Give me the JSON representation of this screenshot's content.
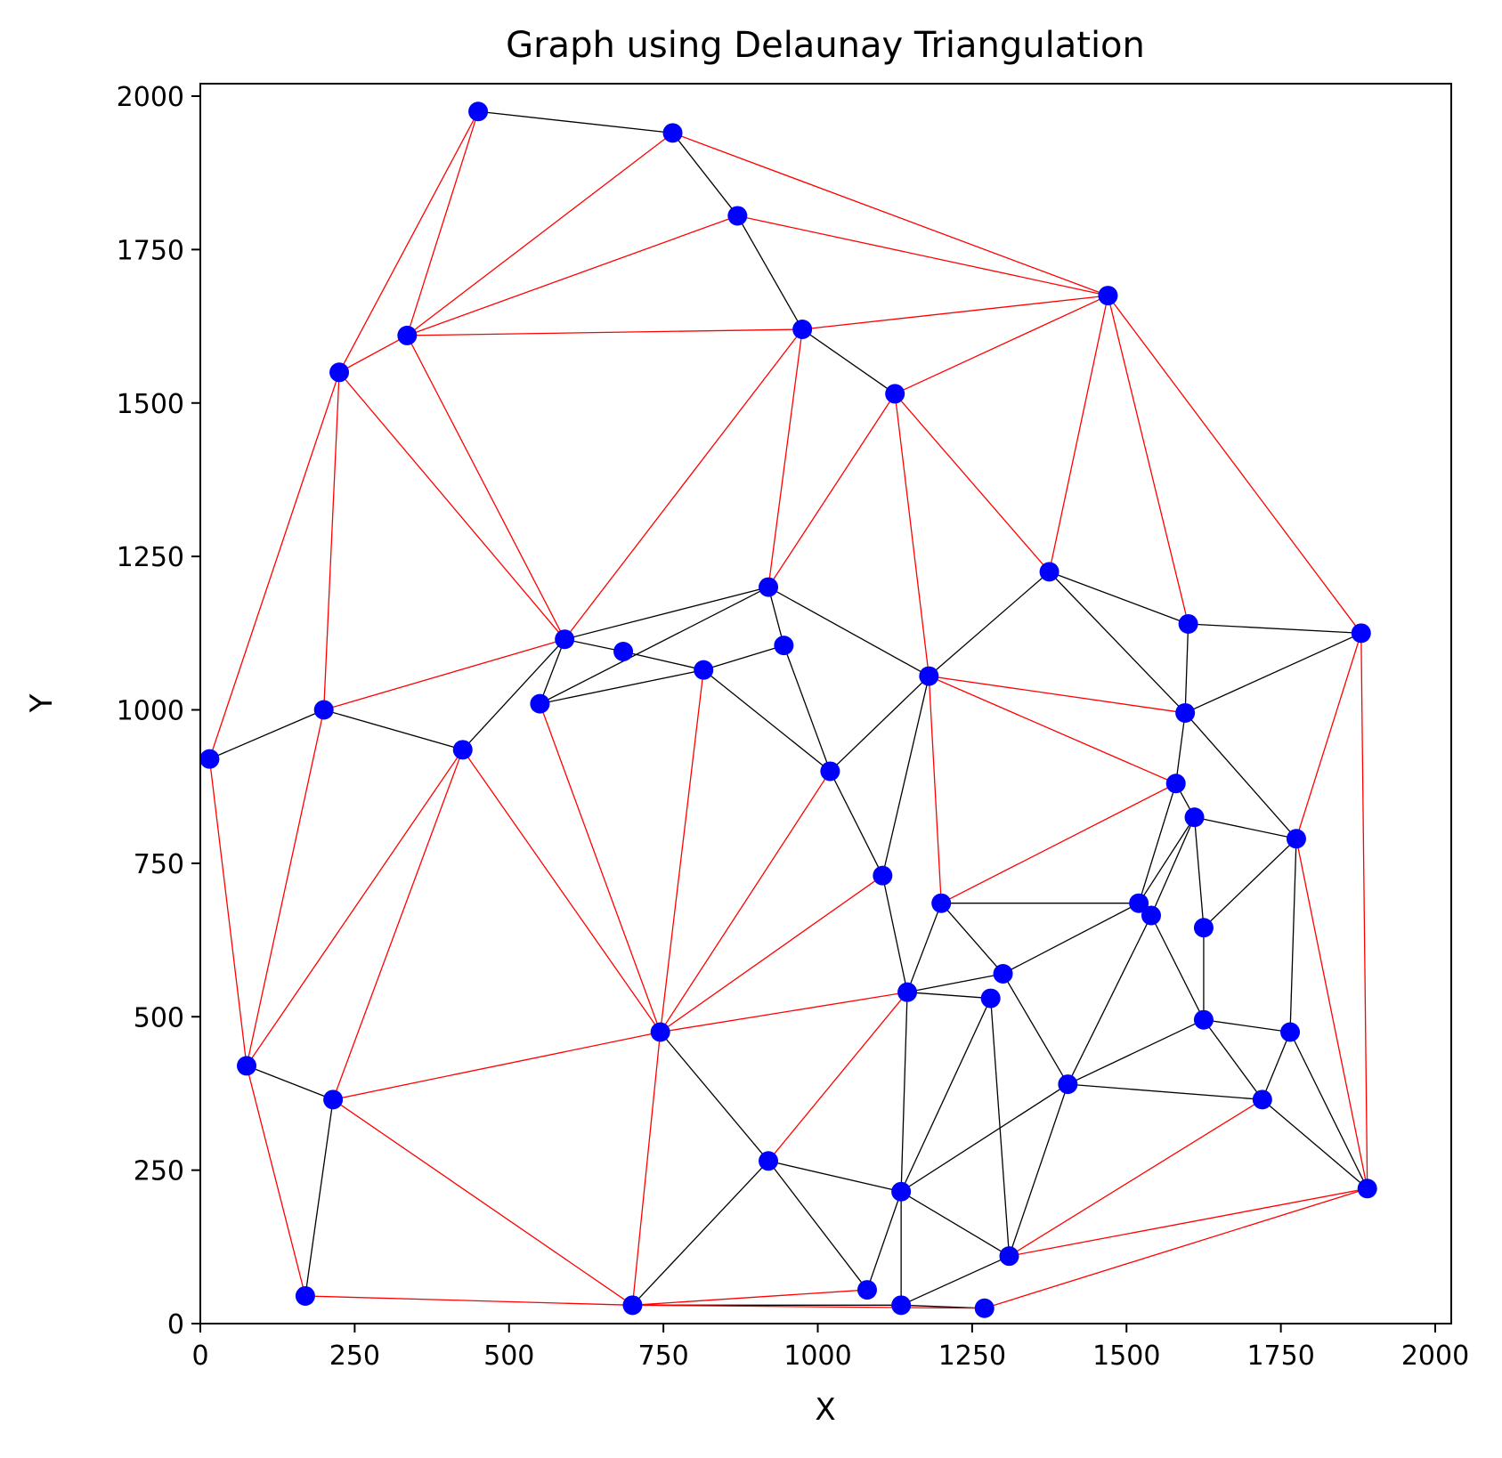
{
  "chart_data": {
    "type": "scatter",
    "title": "Graph using Delaunay Triangulation",
    "xlabel": "X",
    "ylabel": "Y",
    "xlim": [
      0,
      2025
    ],
    "ylim": [
      0,
      2010
    ],
    "xticks": [
      "0",
      "250",
      "500",
      "750",
      "1000",
      "1250",
      "1500",
      "1750",
      "2000"
    ],
    "yticks": [
      "0",
      "250",
      "500",
      "750",
      "1000",
      "1250",
      "1500",
      "1750",
      "2000"
    ],
    "grid": false,
    "legend": "none",
    "colors": {
      "points": "#0000ff",
      "black_edges": "#000000",
      "red_edges": "#ff0000"
    },
    "points": [
      [
        450,
        1975
      ],
      [
        765,
        1940
      ],
      [
        870,
        1805
      ],
      [
        975,
        1620
      ],
      [
        1470,
        1675
      ],
      [
        335,
        1610
      ],
      [
        1125,
        1515
      ],
      [
        225,
        1550
      ],
      [
        1375,
        1225
      ],
      [
        920,
        1200
      ],
      [
        1600,
        1140
      ],
      [
        1880,
        1125
      ],
      [
        945,
        1105
      ],
      [
        590,
        1115
      ],
      [
        685,
        1095
      ],
      [
        815,
        1065
      ],
      [
        1180,
        1055
      ],
      [
        550,
        1010
      ],
      [
        200,
        1000
      ],
      [
        1595,
        995
      ],
      [
        15,
        920
      ],
      [
        425,
        935
      ],
      [
        1020,
        900
      ],
      [
        1580,
        880
      ],
      [
        1610,
        825
      ],
      [
        1775,
        790
      ],
      [
        1105,
        730
      ],
      [
        1200,
        685
      ],
      [
        1520,
        685
      ],
      [
        1540,
        665
      ],
      [
        1625,
        645
      ],
      [
        1300,
        570
      ],
      [
        1145,
        540
      ],
      [
        1280,
        530
      ],
      [
        1625,
        495
      ],
      [
        1765,
        475
      ],
      [
        745,
        475
      ],
      [
        75,
        420
      ],
      [
        215,
        365
      ],
      [
        1405,
        390
      ],
      [
        1720,
        365
      ],
      [
        920,
        265
      ],
      [
        1135,
        215
      ],
      [
        1890,
        220
      ],
      [
        1310,
        110
      ],
      [
        170,
        45
      ],
      [
        1080,
        55
      ],
      [
        1135,
        30
      ],
      [
        700,
        30
      ],
      [
        1270,
        25
      ]
    ],
    "black_edges": [
      [
        0,
        1
      ],
      [
        1,
        2
      ],
      [
        2,
        3
      ],
      [
        3,
        6
      ],
      [
        8,
        10
      ],
      [
        10,
        11
      ],
      [
        8,
        16
      ],
      [
        8,
        19
      ],
      [
        10,
        19
      ],
      [
        11,
        19
      ],
      [
        13,
        9
      ],
      [
        9,
        17
      ],
      [
        9,
        12
      ],
      [
        9,
        16
      ],
      [
        13,
        14
      ],
      [
        14,
        15
      ],
      [
        13,
        17
      ],
      [
        12,
        15
      ],
      [
        15,
        17
      ],
      [
        13,
        21
      ],
      [
        12,
        22
      ],
      [
        15,
        22
      ],
      [
        16,
        22
      ],
      [
        20,
        18
      ],
      [
        18,
        21
      ],
      [
        16,
        26
      ],
      [
        22,
        26
      ],
      [
        19,
        23
      ],
      [
        19,
        25
      ],
      [
        23,
        24
      ],
      [
        24,
        25
      ],
      [
        23,
        28
      ],
      [
        24,
        28
      ],
      [
        24,
        29
      ],
      [
        24,
        30
      ],
      [
        25,
        30
      ],
      [
        27,
        28
      ],
      [
        27,
        31
      ],
      [
        28,
        31
      ],
      [
        26,
        32
      ],
      [
        27,
        32
      ],
      [
        31,
        32
      ],
      [
        32,
        33
      ],
      [
        29,
        34
      ],
      [
        30,
        34
      ],
      [
        29,
        39
      ],
      [
        31,
        39
      ],
      [
        34,
        39
      ],
      [
        34,
        35
      ],
      [
        25,
        35
      ],
      [
        35,
        40
      ],
      [
        34,
        40
      ],
      [
        35,
        43
      ],
      [
        40,
        43
      ],
      [
        39,
        40
      ],
      [
        37,
        38
      ],
      [
        38,
        45
      ],
      [
        36,
        41
      ],
      [
        41,
        48
      ],
      [
        41,
        42
      ],
      [
        41,
        46
      ],
      [
        32,
        42
      ],
      [
        33,
        42
      ],
      [
        39,
        42
      ],
      [
        42,
        44
      ],
      [
        42,
        46
      ],
      [
        42,
        47
      ],
      [
        33,
        44
      ],
      [
        44,
        47
      ],
      [
        47,
        48
      ],
      [
        47,
        49
      ],
      [
        39,
        44
      ]
    ],
    "red_edges": [
      [
        0,
        5
      ],
      [
        0,
        7
      ],
      [
        1,
        5
      ],
      [
        1,
        4
      ],
      [
        2,
        5
      ],
      [
        2,
        4
      ],
      [
        3,
        5
      ],
      [
        3,
        4
      ],
      [
        4,
        6
      ],
      [
        4,
        8
      ],
      [
        4,
        10
      ],
      [
        4,
        11
      ],
      [
        3,
        9
      ],
      [
        3,
        13
      ],
      [
        6,
        9
      ],
      [
        6,
        16
      ],
      [
        6,
        8
      ],
      [
        5,
        13
      ],
      [
        7,
        5
      ],
      [
        7,
        13
      ],
      [
        7,
        18
      ],
      [
        7,
        20
      ],
      [
        11,
        25
      ],
      [
        11,
        43
      ],
      [
        13,
        18
      ],
      [
        16,
        19
      ],
      [
        16,
        23
      ],
      [
        16,
        27
      ],
      [
        23,
        27
      ],
      [
        15,
        36
      ],
      [
        17,
        36
      ],
      [
        18,
        37
      ],
      [
        20,
        37
      ],
      [
        21,
        37
      ],
      [
        21,
        38
      ],
      [
        21,
        36
      ],
      [
        22,
        36
      ],
      [
        26,
        36
      ],
      [
        36,
        38
      ],
      [
        32,
        36
      ],
      [
        36,
        48
      ],
      [
        32,
        41
      ],
      [
        37,
        45
      ],
      [
        45,
        48
      ],
      [
        38,
        48
      ],
      [
        48,
        46
      ],
      [
        48,
        49
      ],
      [
        25,
        43
      ],
      [
        43,
        44
      ],
      [
        43,
        49
      ],
      [
        40,
        44
      ]
    ]
  }
}
